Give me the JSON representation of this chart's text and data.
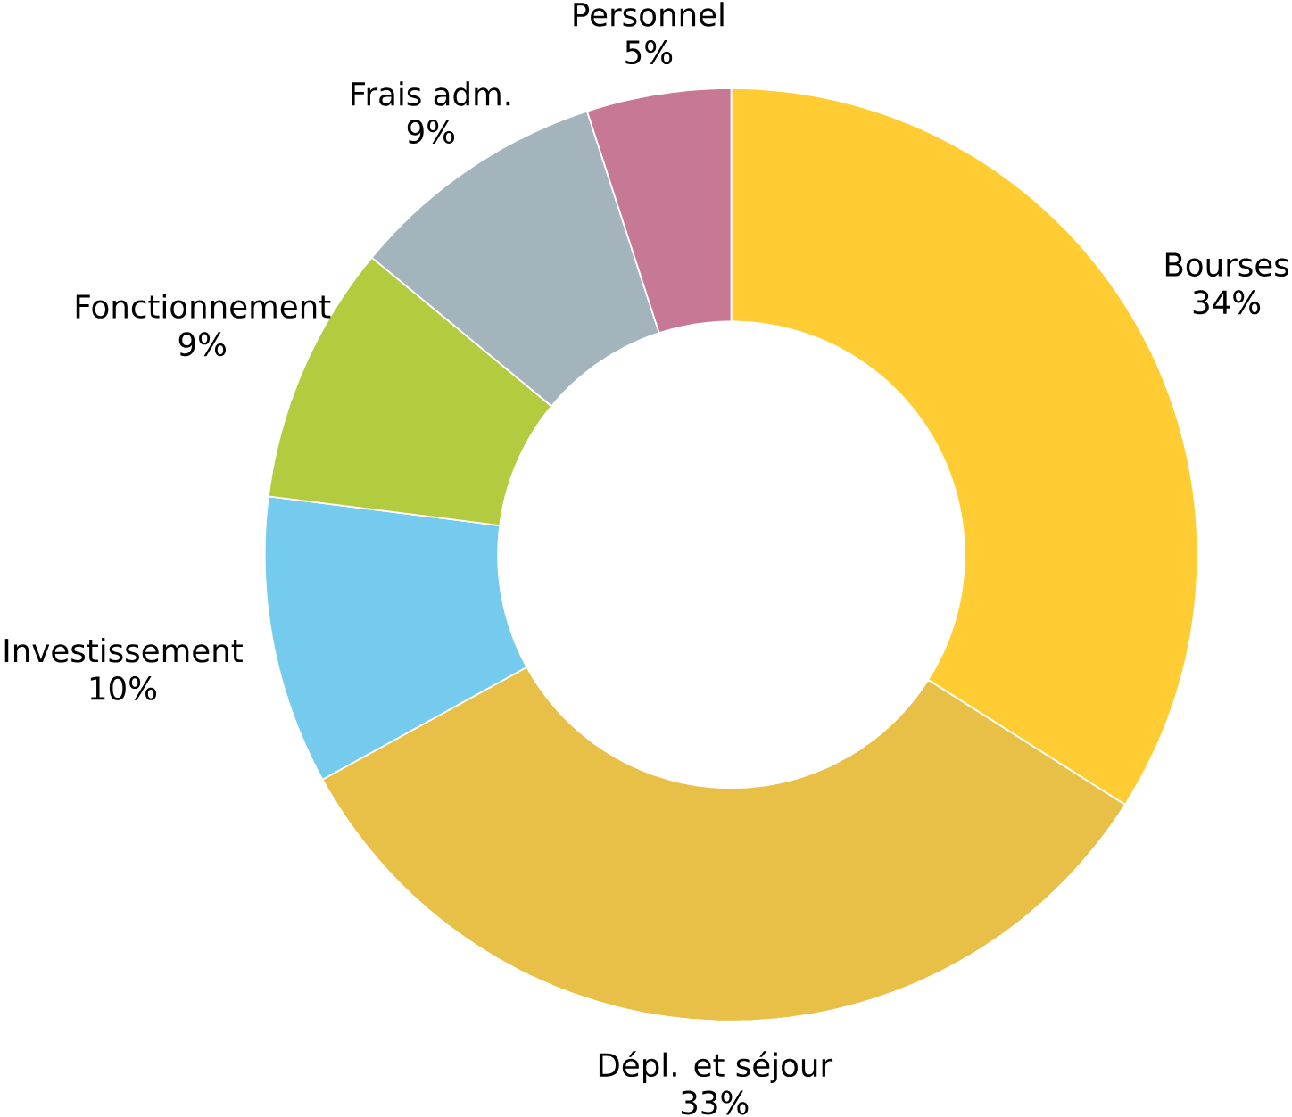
{
  "chart_data": {
    "type": "donut",
    "categories": [
      "Bourses",
      "Dépl. et séjour",
      "Investissement",
      "Fonctionnement",
      "Frais adm.",
      "Personnel"
    ],
    "values": [
      34,
      33,
      10,
      9,
      9,
      5
    ],
    "value_labels": [
      "34%",
      "33%",
      "10%",
      "9%",
      "9%",
      "5%"
    ],
    "colors": [
      "#ffcd33",
      "#e8bf47",
      "#74cbee",
      "#b2cb3f",
      "#a3b4bd",
      "#c77895"
    ]
  }
}
